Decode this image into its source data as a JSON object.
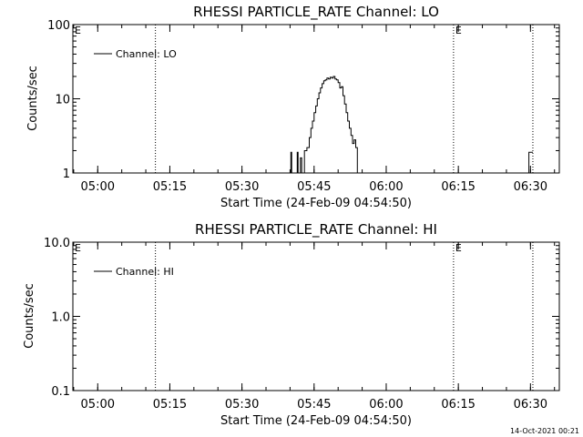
{
  "chart_data": [
    {
      "type": "line",
      "title": "RHESSI PARTICLE_RATE Channel: LO",
      "xlabel": "Start Time (24-Feb-09 04:54:50)",
      "ylabel": "Counts/sec",
      "yscale": "log",
      "ylim": [
        1,
        100
      ],
      "ytick_labels": [
        "1",
        "10",
        "100"
      ],
      "xlim": [
        "04:54:50",
        "06:36:00"
      ],
      "xtick_labels": [
        "05:00",
        "05:15",
        "05:30",
        "05:45",
        "06:00",
        "06:15",
        "06:30"
      ],
      "grid": false,
      "legend": {
        "position": "top-left",
        "entries": [
          "Channel: LO"
        ]
      },
      "event_lines": [
        {
          "time": "05:12:00",
          "label": ""
        },
        {
          "time": "06:14:00",
          "label": "E"
        },
        {
          "time": "06:30:30",
          "label": ""
        }
      ],
      "corner_label": "E",
      "series": [
        {
          "name": "Channel: LO",
          "segments": [
            [
              [
                "05:40:00",
                1.0
              ],
              [
                "05:40:10",
                1.9
              ],
              [
                "05:40:20",
                1.0
              ],
              [
                "05:41:20",
                1.0
              ],
              [
                "05:41:30",
                1.9
              ],
              [
                "05:41:40",
                1.0
              ],
              [
                "05:42:00",
                1.0
              ],
              [
                "05:42:10",
                1.6
              ],
              [
                "05:42:25",
                1.0
              ],
              [
                "05:42:50",
                1.0
              ],
              [
                "05:43:00",
                2.0
              ],
              [
                "05:43:30",
                2.2
              ],
              [
                "05:44:00",
                3.0
              ],
              [
                "05:44:20",
                4.0
              ],
              [
                "05:44:40",
                5.0
              ],
              [
                "05:45:00",
                6.5
              ],
              [
                "05:45:20",
                8.0
              ],
              [
                "05:45:40",
                10.0
              ],
              [
                "05:46:00",
                12.0
              ],
              [
                "05:46:20",
                14.0
              ],
              [
                "05:46:40",
                16.0
              ],
              [
                "05:47:00",
                17.5
              ],
              [
                "05:47:20",
                18.0
              ],
              [
                "05:47:40",
                19.0
              ],
              [
                "05:48:00",
                18.5
              ],
              [
                "05:48:20",
                19.5
              ],
              [
                "05:48:40",
                19.0
              ],
              [
                "05:49:00",
                20.0
              ],
              [
                "05:49:20",
                18.5
              ],
              [
                "05:49:40",
                18.0
              ],
              [
                "05:50:00",
                16.5
              ],
              [
                "05:50:20",
                14.0
              ],
              [
                "05:50:40",
                14.5
              ],
              [
                "05:51:00",
                11.0
              ],
              [
                "05:51:20",
                8.5
              ],
              [
                "05:51:40",
                6.5
              ],
              [
                "05:52:00",
                5.0
              ],
              [
                "05:52:20",
                4.0
              ],
              [
                "05:52:40",
                3.2
              ],
              [
                "05:53:00",
                2.5
              ],
              [
                "05:53:20",
                2.8
              ],
              [
                "05:53:40",
                2.2
              ],
              [
                "05:54:00",
                1.0
              ]
            ],
            [
              [
                "06:29:00",
                1.0
              ],
              [
                "06:29:40",
                1.9
              ],
              [
                "06:30:30",
                1.9
              ]
            ]
          ]
        }
      ]
    },
    {
      "type": "line",
      "title": "RHESSI PARTICLE_RATE Channel: HI",
      "xlabel": "Start Time (24-Feb-09 04:54:50)",
      "ylabel": "Counts/sec",
      "yscale": "log",
      "ylim": [
        0.1,
        10
      ],
      "ytick_labels": [
        "0.1",
        "1.0",
        "10.0"
      ],
      "xlim": [
        "04:54:50",
        "06:36:00"
      ],
      "xtick_labels": [
        "05:00",
        "05:15",
        "05:30",
        "05:45",
        "06:00",
        "06:15",
        "06:30"
      ],
      "grid": false,
      "legend": {
        "position": "top-left",
        "entries": [
          "Channel: HI"
        ]
      },
      "event_lines": [
        {
          "time": "05:12:00",
          "label": ""
        },
        {
          "time": "06:14:00",
          "label": "E"
        },
        {
          "time": "06:30:30",
          "label": ""
        }
      ],
      "corner_label": "E",
      "series": [
        {
          "name": "Channel: HI",
          "segments": []
        }
      ]
    }
  ],
  "footer": {
    "timestamp": "14-Oct-2021 00:21"
  }
}
